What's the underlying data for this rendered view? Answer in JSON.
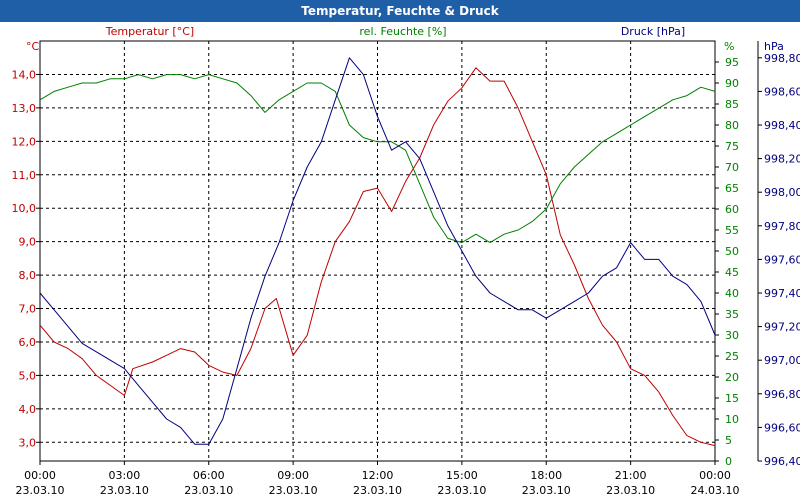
{
  "chart_data": {
    "type": "line",
    "title": "Temperatur, Feuchte & Druck",
    "x": {
      "hours": [
        0,
        3,
        6,
        9,
        12,
        15,
        18,
        21,
        24
      ],
      "time_labels": [
        "00:00",
        "03:00",
        "06:00",
        "09:00",
        "12:00",
        "15:00",
        "18:00",
        "21:00",
        "00:00"
      ],
      "date_labels": [
        "23.03.10",
        "23.03.10",
        "23.03.10",
        "23.03.10",
        "23.03.10",
        "23.03.10",
        "23.03.10",
        "23.03.10",
        "24.03.10"
      ],
      "range": [
        0,
        24
      ]
    },
    "axes": {
      "temperature": {
        "unit": "°C",
        "label": "Temperatur [°C]",
        "side": "left",
        "color": "#c00000",
        "range": [
          2.44,
          15.0
        ],
        "ticks": [
          3.0,
          4.0,
          5.0,
          6.0,
          7.0,
          8.0,
          9.0,
          10.0,
          11.0,
          12.0,
          13.0,
          14.0
        ],
        "tick_labels": [
          "3,0",
          "4,0",
          "5,0",
          "6,0",
          "7,0",
          "8,0",
          "9,0",
          "10,0",
          "11,0",
          "12,0",
          "13,0",
          "14,0"
        ]
      },
      "humidity": {
        "unit": "%",
        "label": "rel. Feuchte [%]",
        "side": "right-inner",
        "color": "#008000",
        "range": [
          0,
          100
        ],
        "ticks": [
          0,
          5,
          10,
          15,
          20,
          25,
          30,
          35,
          40,
          45,
          50,
          55,
          60,
          65,
          70,
          75,
          80,
          85,
          90,
          95
        ],
        "tick_labels": [
          "0",
          "5",
          "10",
          "15",
          "20",
          "25",
          "30",
          "35",
          "40",
          "45",
          "50",
          "55",
          "60",
          "65",
          "70",
          "75",
          "80",
          "85",
          "90",
          "95"
        ]
      },
      "pressure": {
        "unit": "hPa",
        "label": "Druck [hPa]",
        "side": "right-outer",
        "color": "#000080",
        "range": [
          996.4,
          998.9
        ],
        "ticks": [
          996.4,
          996.6,
          996.8,
          997.0,
          997.2,
          997.4,
          997.6,
          997.8,
          998.0,
          998.2,
          998.4,
          998.6,
          998.8
        ],
        "tick_labels": [
          "996,40",
          "996,60",
          "996,80",
          "997,00",
          "997,20",
          "997,40",
          "997,60",
          "997,80",
          "998,00",
          "998,20",
          "998,40",
          "998,60",
          "998,80"
        ]
      }
    },
    "grid": true,
    "series": [
      {
        "name": "Temperatur",
        "axis": "temperature",
        "color": "#c00000",
        "x": [
          0,
          0.5,
          1,
          1.5,
          2,
          2.5,
          3,
          3.3,
          4,
          4.5,
          5,
          5.5,
          6,
          6.5,
          7,
          7.5,
          8,
          8.4,
          9,
          9.5,
          10,
          10.5,
          11,
          11.5,
          12,
          12.5,
          13,
          13.5,
          14,
          14.5,
          15,
          15.5,
          16,
          16.5,
          17,
          17.5,
          18,
          18.5,
          19,
          19.5,
          20,
          20.5,
          21,
          21.5,
          22,
          22.5,
          23,
          23.5,
          24
        ],
        "values": [
          6.5,
          6.0,
          5.8,
          5.5,
          5.0,
          4.7,
          4.4,
          5.2,
          5.4,
          5.6,
          5.8,
          5.7,
          5.3,
          5.1,
          5.0,
          5.8,
          7.0,
          7.3,
          5.6,
          6.2,
          7.8,
          9.0,
          9.6,
          10.5,
          10.6,
          9.9,
          10.8,
          11.5,
          12.5,
          13.2,
          13.6,
          14.2,
          13.8,
          13.8,
          13.0,
          12.0,
          11.0,
          9.2,
          8.3,
          7.3,
          6.5,
          6.0,
          5.2,
          5.0,
          4.5,
          3.8,
          3.2,
          3.0,
          2.9
        ]
      },
      {
        "name": "rel. Feuchte",
        "axis": "humidity",
        "color": "#008000",
        "x": [
          0,
          0.5,
          1,
          1.5,
          2,
          2.5,
          3,
          3.5,
          4,
          4.5,
          5,
          5.5,
          6,
          6.5,
          7,
          7.5,
          8,
          8.5,
          9,
          9.5,
          10,
          10.5,
          11,
          11.5,
          12,
          12.5,
          13,
          13.5,
          14,
          14.5,
          15,
          15.5,
          16,
          16.5,
          17,
          17.5,
          18,
          18.5,
          19,
          19.5,
          20,
          20.5,
          21,
          21.5,
          22,
          22.5,
          23,
          23.5,
          24
        ],
        "values": [
          86,
          88,
          89,
          90,
          90,
          91,
          91,
          92,
          91,
          92,
          92,
          91,
          92,
          91,
          90,
          87,
          83,
          86,
          88,
          90,
          90,
          88,
          80,
          77,
          76,
          76,
          74,
          66,
          58,
          53,
          52,
          54,
          52,
          54,
          55,
          57,
          60,
          66,
          70,
          73,
          76,
          78,
          80,
          82,
          84,
          86,
          87,
          89,
          88
        ]
      },
      {
        "name": "Druck",
        "axis": "pressure",
        "color": "#000080",
        "x": [
          0,
          0.5,
          1,
          1.5,
          2,
          2.5,
          3,
          3.5,
          4,
          4.5,
          5,
          5.5,
          6,
          6.5,
          7,
          7.5,
          8,
          8.5,
          9,
          9.5,
          10,
          10.5,
          11,
          11.5,
          12,
          12.5,
          13,
          13.5,
          14,
          14.5,
          15,
          15.5,
          16,
          16.5,
          17,
          17.5,
          18,
          18.5,
          19,
          19.5,
          20,
          20.5,
          21,
          21.5,
          22,
          22.5,
          23,
          23.5,
          24
        ],
        "values": [
          997.4,
          997.3,
          997.2,
          997.1,
          997.05,
          997.0,
          996.95,
          996.85,
          996.75,
          996.65,
          996.6,
          996.5,
          996.5,
          996.65,
          996.95,
          997.25,
          997.5,
          997.7,
          997.95,
          998.15,
          998.3,
          998.55,
          998.8,
          998.7,
          998.45,
          998.25,
          998.3,
          998.2,
          998.0,
          997.8,
          997.65,
          997.5,
          997.4,
          997.35,
          997.3,
          997.3,
          997.25,
          997.3,
          997.35,
          997.4,
          997.5,
          997.55,
          997.7,
          997.6,
          997.6,
          997.5,
          997.45,
          997.35,
          997.15
        ]
      }
    ]
  }
}
